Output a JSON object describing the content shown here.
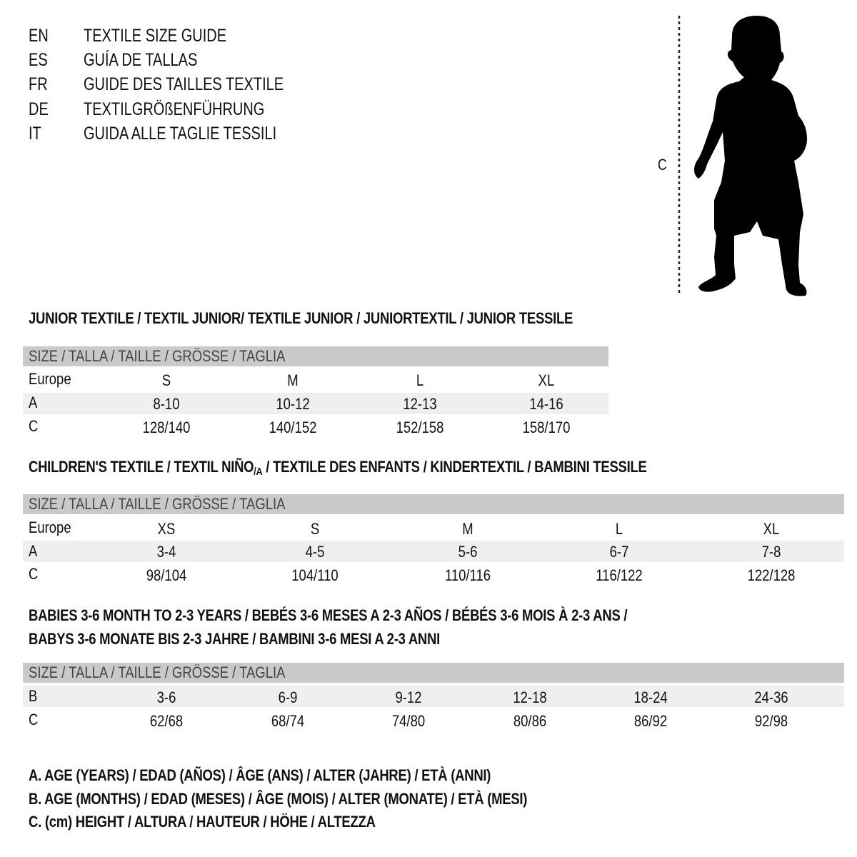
{
  "titles": [
    {
      "code": "EN",
      "text": "TEXTILE SIZE GUIDE"
    },
    {
      "code": "ES",
      "text": "GUÍA DE TALLAS"
    },
    {
      "code": "FR",
      "text": "GUIDE DES TAILLES TEXTILE"
    },
    {
      "code": "DE",
      "text": "TEXTILGRÖßENFÜHRUNG"
    },
    {
      "code": "IT",
      "text": "GUIDA ALLE TAGLIE TESSILI"
    }
  ],
  "figure": {
    "measure_label": "C",
    "icon": "child-silhouette-icon"
  },
  "junior": {
    "heading": "JUNIOR TEXTILE / TEXTIL JUNIOR/ TEXTILE JUNIOR / JUNIORTEXTIL / JUNIOR TESSILE",
    "size_header": "SIZE / TALLA / TAILLE / GRÖSSE / TAGLIA",
    "rows": [
      {
        "label": "Europe",
        "values": [
          "S",
          "M",
          "L",
          "XL"
        ]
      },
      {
        "label": "A",
        "values": [
          "8-10",
          "10-12",
          "12-13",
          "14-16"
        ]
      },
      {
        "label": "C",
        "values": [
          "128/140",
          "140/152",
          "152/158",
          "158/170"
        ]
      }
    ]
  },
  "children": {
    "heading_pre": "CHILDREN'S TEXTILE / TEXTIL NIÑO",
    "heading_sub": "/A",
    "heading_post": " / TEXTILE DES ENFANTS / KINDERTEXTIL / BAMBINI TESSILE",
    "size_header": "SIZE / TALLA / TAILLE / GRÖSSE / TAGLIA",
    "rows": [
      {
        "label": "Europe",
        "values": [
          "XS",
          "S",
          "M",
          "L",
          "XL"
        ]
      },
      {
        "label": "A",
        "values": [
          "3-4",
          "4-5",
          "5-6",
          "6-7",
          "7-8"
        ]
      },
      {
        "label": "C",
        "values": [
          "98/104",
          "104/110",
          "110/116",
          "116/122",
          "122/128"
        ]
      }
    ]
  },
  "babies": {
    "heading_line1": "BABIES 3-6 MONTH TO 2-3 YEARS / BEBÉS 3-6 MESES A 2-3 AÑOS / BÉBÉS 3-6 MOIS À 2-3 ANS /",
    "heading_line2": "BABYS 3-6 MONATE BIS 2-3 JAHRE / BAMBINI 3-6 MESI A 2-3 ANNI",
    "size_header": "SIZE / TALLA / TAILLE / GRÖSSE / TAGLIA",
    "rows": [
      {
        "label": "B",
        "values": [
          "3-6",
          "6-9",
          "9-12",
          "12-18",
          "18-24",
          "24-36"
        ]
      },
      {
        "label": "C",
        "values": [
          "62/68",
          "68/74",
          "74/80",
          "80/86",
          "86/92",
          "92/98"
        ]
      }
    ]
  },
  "legend": [
    "A. AGE (YEARS) / EDAD (AÑOS) / ÂGE (ANS) / ALTER (JAHRE) / ETÀ (ANNI)",
    "B. AGE (MONTHS) / EDAD (MESES) / ÂGE (MOIS) / ALTER (MONATE) / ETÀ (MESI)",
    "C. (cm) HEIGHT / ALTURA / HAUTEUR / HÖHE / ALTEZZA"
  ]
}
